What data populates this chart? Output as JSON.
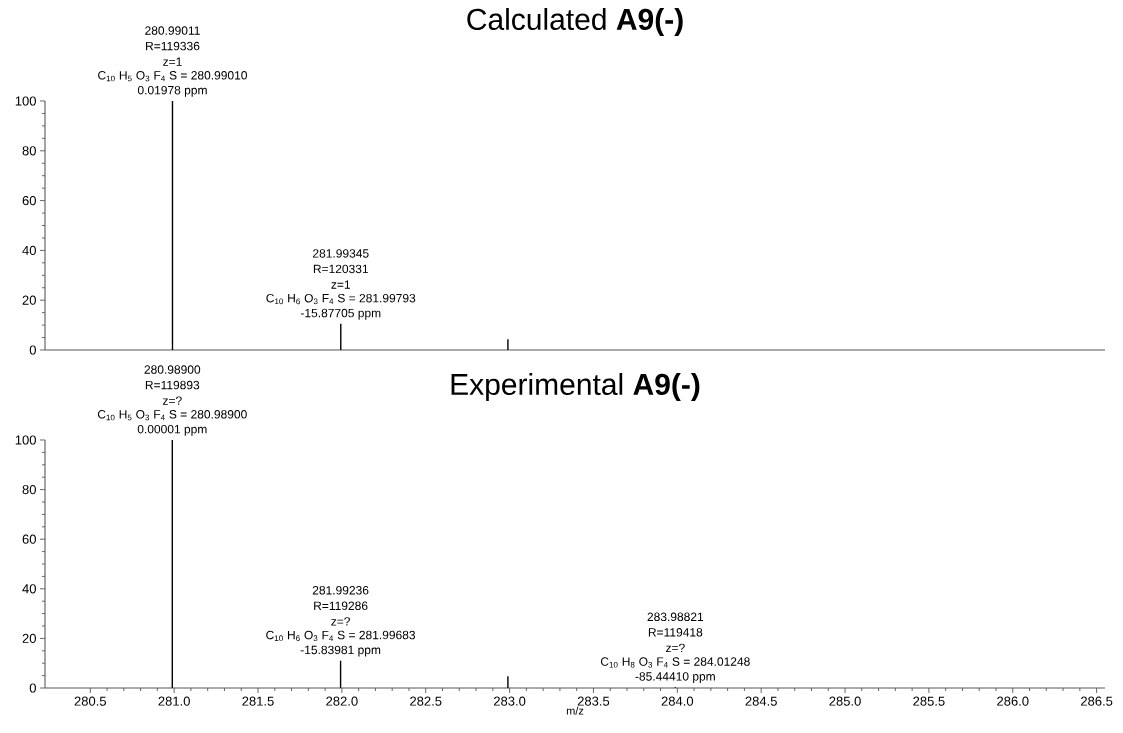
{
  "chart_data": [
    {
      "type": "bar",
      "title": "Calculated **A9(-)**",
      "x": [
        280.99011,
        281.99345,
        282.99
      ],
      "series": [
        {
          "color": "#000000",
          "values": [
            100,
            10.5,
            4.3
          ]
        }
      ],
      "xlim": [
        280.23,
        286.55
      ],
      "ylim": [
        0,
        100
      ],
      "yticks": [
        0,
        20,
        40,
        60,
        80,
        100
      ],
      "tick_labels": "y",
      "annotations": [
        "280.99011",
        "R=119336",
        "z=1",
        "C$_{10}$ H$_{5}$ O$_{3}$ F$_{4}$ S = 280.99010",
        {
          "text": "0.01978 ppm",
          "x": 280.99011,
          "y": 100
        },
        "281.99345",
        "R=120331",
        "z=1",
        "C$_{10}$ H$_{6}$ O$_{3}$ F$_{4}$ S = 281.99793",
        {
          "text": "-15.87705 ppm",
          "x": 281.99345,
          "y": 10.5
        }
      ]
    },
    {
      "type": "bar",
      "title": "Experimental **A9(-)**",
      "xlabel": "m/z",
      "x": [
        280.989,
        281.99236,
        282.99,
        283.98821
      ],
      "series": [
        {
          "color": "#000000",
          "values": [
            100,
            11,
            4.7,
            0.3
          ]
        }
      ],
      "xlim": [
        280.23,
        286.55
      ],
      "ylim": [
        0,
        100
      ],
      "yticks": [
        0,
        20,
        40,
        60,
        80,
        100
      ],
      "xticks": [
        {
          "value": 280.5,
          "label": "280.5"
        },
        {
          "value": 281,
          "label": "281.0"
        },
        {
          "value": 281.5,
          "label": "281.5"
        },
        {
          "value": 282,
          "label": "282.0"
        },
        {
          "value": 282.5,
          "label": "282.5"
        },
        {
          "value": 283,
          "label": "283.0"
        },
        {
          "value": 283.5,
          "label": "283.5"
        },
        {
          "value": 284,
          "label": "284.0"
        },
        {
          "value": 284.5,
          "label": "284.5"
        },
        {
          "value": 285,
          "label": "285.0"
        },
        {
          "value": 285.5,
          "label": "285.5"
        },
        {
          "value": 286,
          "label": "286.0"
        },
        {
          "value": 286.5,
          "label": "286.5"
        }
      ],
      "annotations": [
        "280.98900",
        "R=119893",
        "z=?",
        "C$_{10}$ H$_{5}$ O$_{3}$ F$_{4}$ S = 280.98900",
        {
          "text": "0.00001 ppm",
          "x": 280.989,
          "y": 100
        },
        "281.99236",
        "R=119286",
        "z=?",
        "C$_{10}$ H$_{6}$ O$_{3}$ F$_{4}$ S = 281.99683",
        {
          "text": "-15.83981 ppm",
          "x": 281.99236,
          "y": 11
        },
        "283.98821",
        "R=119418",
        "z=?",
        "C$_{10}$ H$_{8}$ O$_{3}$ F$_{4}$ S = 284.01248",
        {
          "text": "-85.44410 ppm",
          "x": 283.98821,
          "y": 0.3
        }
      ]
    }
  ]
}
